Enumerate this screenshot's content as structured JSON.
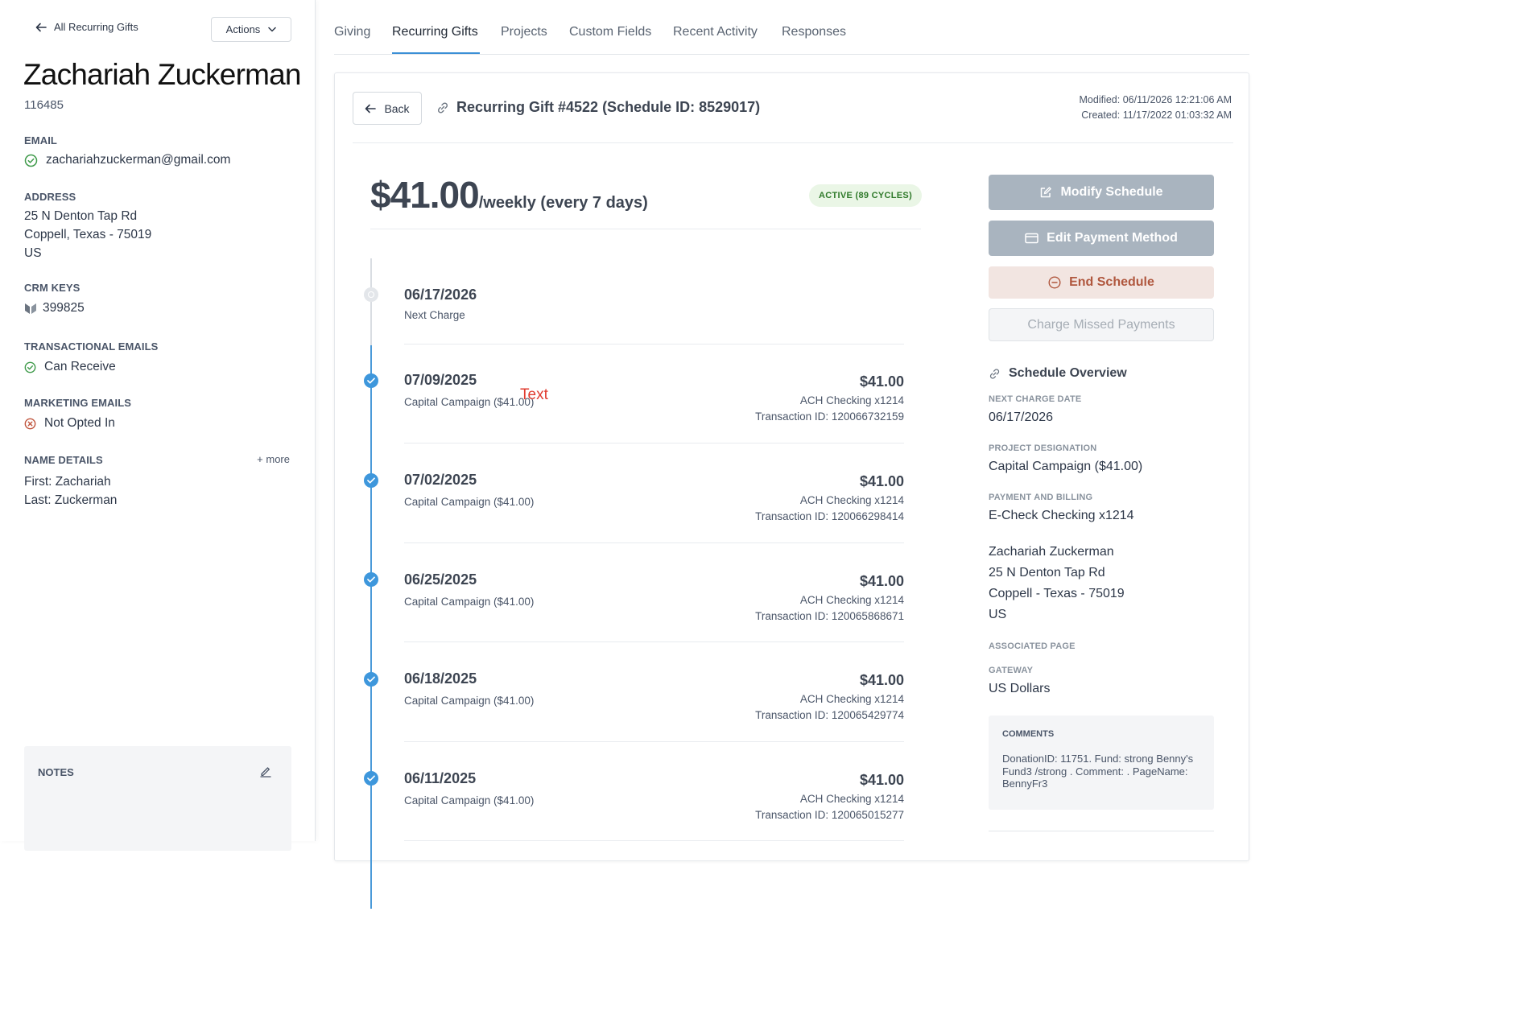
{
  "sidebar": {
    "back_label": "All Recurring Gifts",
    "actions_label": "Actions",
    "donor_name": "Zachariah Zuckerman",
    "donor_id": "116485",
    "email": {
      "label": "EMAIL",
      "value": "zachariahzuckerman@gmail.com"
    },
    "address": {
      "label": "ADDRESS",
      "line1": "25 N Denton Tap Rd",
      "line2": "Coppell, Texas - 75019",
      "line3": "US"
    },
    "crm_keys": {
      "label": "CRM KEYS",
      "value": "399825"
    },
    "transactional_emails": {
      "label": "TRANSACTIONAL EMAILS",
      "value": "Can Receive"
    },
    "marketing_emails": {
      "label": "MARKETING EMAILS",
      "value": "Not Opted In"
    },
    "name_details": {
      "label": "NAME DETAILS",
      "more": "+ more",
      "first": "First: Zachariah",
      "last": "Last: Zuckerman"
    },
    "notes_label": "NOTES"
  },
  "tabs": [
    {
      "label": "Giving",
      "active": false
    },
    {
      "label": "Recurring Gifts",
      "active": true
    },
    {
      "label": "Projects",
      "active": false
    },
    {
      "label": "Custom Fields",
      "active": false
    },
    {
      "label": "Recent Activity",
      "active": false
    },
    {
      "label": "Responses",
      "active": false
    }
  ],
  "gift": {
    "back_label": "Back",
    "title": "Recurring Gift #4522 (Schedule ID: 8529017)",
    "modified": "Modified: 06/11/2026 12:21:06 AM",
    "created": "Created: 11/17/2022 01:03:32 AM",
    "amount": "$41.00",
    "frequency": "/weekly (every 7 days)",
    "status": "ACTIVE (89 CYCLES)"
  },
  "next_charge": {
    "date": "06/17/2026",
    "label": "Next Charge"
  },
  "stray_text": "Text",
  "transactions": [
    {
      "date": "07/09/2025",
      "desc": "Capital Campaign ($41.00)",
      "amount": "$41.00",
      "method": "ACH Checking x1214",
      "txid": "Transaction ID: 120066732159"
    },
    {
      "date": "07/02/2025",
      "desc": "Capital Campaign ($41.00)",
      "amount": "$41.00",
      "method": "ACH Checking x1214",
      "txid": "Transaction ID: 120066298414"
    },
    {
      "date": "06/25/2025",
      "desc": "Capital Campaign ($41.00)",
      "amount": "$41.00",
      "method": "ACH Checking x1214",
      "txid": "Transaction ID: 120065868671"
    },
    {
      "date": "06/18/2025",
      "desc": "Capital Campaign ($41.00)",
      "amount": "$41.00",
      "method": "ACH Checking x1214",
      "txid": "Transaction ID: 120065429774"
    },
    {
      "date": "06/11/2025",
      "desc": "Capital Campaign ($41.00)",
      "amount": "$41.00",
      "method": "ACH Checking x1214",
      "txid": "Transaction ID: 120065015277"
    }
  ],
  "actions": {
    "modify": "Modify Schedule",
    "edit_payment": "Edit Payment Method",
    "end": "End Schedule",
    "charge_missed": "Charge Missed Payments"
  },
  "overview": {
    "title": "Schedule Overview",
    "next_charge_label": "NEXT CHARGE DATE",
    "next_charge_value": "06/17/2026",
    "project_label": "PROJECT DESIGNATION",
    "project_value": "Capital Campaign ($41.00)",
    "payment_label": "PAYMENT AND BILLING",
    "payment_value": "E-Check Checking x1214",
    "billing_name": "Zachariah Zuckerman",
    "billing_line1": "25 N Denton Tap Rd",
    "billing_line2": "Coppell - Texas - 75019",
    "billing_line3": "US",
    "associated_page_label": "ASSOCIATED PAGE",
    "gateway_label": "GATEWAY",
    "gateway_value": "US Dollars",
    "comments_label": "COMMENTS",
    "comments_value": "DonationID: 11751. Fund: strong Benny's Fund3 /strong . Comment: . PageName: BennyFr3"
  },
  "colors": {
    "accent": "#3e97dc",
    "status_bg": "#eaf6e6",
    "status_text": "#2f7a2a",
    "end_bg": "#f2e5e1",
    "end_text": "#b0573e",
    "button_grey": "#a9b4bf",
    "stray_text": "#e03b2f"
  },
  "icons": [
    "arrow-left-icon",
    "chevron-down-icon",
    "check-circle-icon",
    "crm-logo-icon",
    "x-circle-icon",
    "pencil-icon",
    "link-icon",
    "edit-square-icon",
    "card-icon",
    "minus-circle-icon"
  ]
}
